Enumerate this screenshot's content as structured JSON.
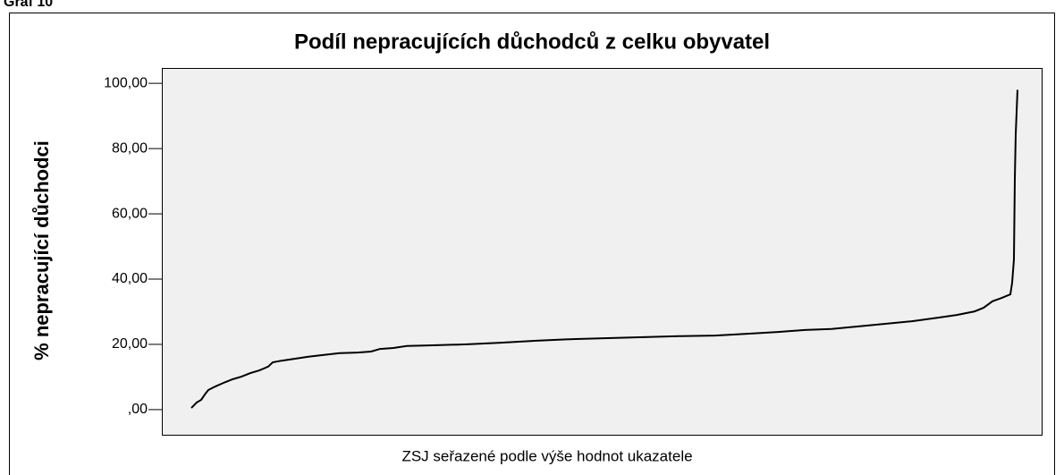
{
  "heading": "Graf 10",
  "chart_data": {
    "type": "line",
    "title": "Podíl nepracujících důchodců z celku obyvatel",
    "x_label": "ZSJ seřazené podle výše hodnot ukazatele",
    "y_label": "% nepracující důchodci",
    "x": [
      0,
      6,
      11,
      16,
      19,
      26,
      36,
      46,
      56,
      66,
      76,
      81,
      86,
      91,
      101,
      116,
      131,
      146,
      166,
      186,
      201,
      211,
      226,
      241,
      266,
      306,
      346,
      386,
      426,
      466,
      506,
      546,
      586,
      626,
      656,
      686,
      716,
      746,
      776,
      806,
      836,
      856,
      876,
      886,
      896,
      906,
      916,
      918,
      920,
      921,
      922,
      924
    ],
    "values": [
      0.5,
      2.2,
      3,
      5,
      6,
      7,
      8.2,
      9.3,
      10.1,
      11.2,
      12,
      12.6,
      13.2,
      14.5,
      15,
      15.6,
      16.2,
      16.7,
      17.3,
      17.5,
      17.8,
      18.6,
      18.9,
      19.5,
      19.7,
      20,
      20.5,
      21.1,
      21.6,
      21.9,
      22.2,
      22.5,
      22.7,
      23.3,
      23.8,
      24.4,
      24.7,
      25.5,
      26.3,
      27.1,
      28.2,
      29,
      30.1,
      31.2,
      33.2,
      34.2,
      35.3,
      38.9,
      46,
      70.7,
      84.4,
      98
    ],
    "color": "#000000",
    "xlim": [
      -33,
      951
    ],
    "ylim": [
      -7.7,
      104.7
    ],
    "yticks": [
      {
        "value": 0,
        "label": ",00"
      },
      {
        "value": 20,
        "label": "20,00"
      },
      {
        "value": 40,
        "label": "40,00"
      },
      {
        "value": 60,
        "label": "60,00"
      },
      {
        "value": 80,
        "label": "80,00"
      },
      {
        "value": 100,
        "label": "100,00"
      }
    ],
    "plot_background": "#f0f0f0"
  }
}
